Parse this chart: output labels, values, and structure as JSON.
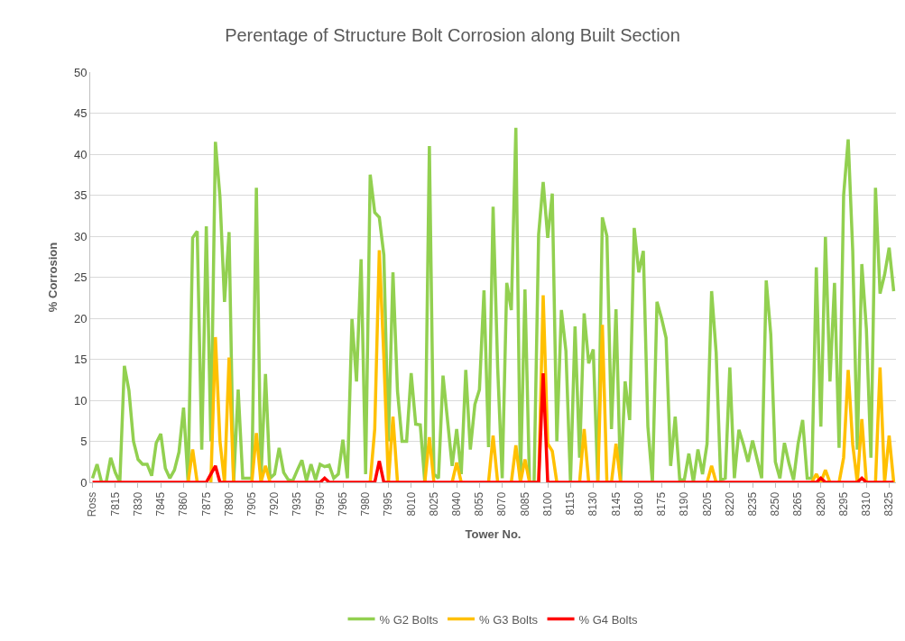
{
  "chart_data": {
    "type": "line",
    "title": "Perentage of Structure Bolt Corrosion along Built Section",
    "xlabel": "Tower No.",
    "ylabel": "% Corrosion",
    "categories": [
      "Ross",
      null,
      null,
      null,
      null,
      "7815",
      null,
      null,
      null,
      null,
      "7830",
      null,
      null,
      null,
      null,
      "7845",
      null,
      null,
      null,
      null,
      "7860",
      null,
      null,
      null,
      null,
      "7875",
      null,
      null,
      null,
      null,
      "7890",
      null,
      null,
      null,
      null,
      "7905",
      null,
      null,
      null,
      null,
      "7920",
      null,
      null,
      null,
      null,
      "7935",
      null,
      null,
      null,
      null,
      "7950",
      null,
      null,
      null,
      null,
      "7965",
      null,
      null,
      null,
      null,
      "7980",
      null,
      null,
      null,
      null,
      "7995",
      null,
      null,
      null,
      null,
      "8010",
      null,
      null,
      null,
      null,
      "8025",
      null,
      null,
      null,
      null,
      "8040",
      null,
      null,
      null,
      null,
      "8055",
      null,
      null,
      null,
      null,
      "8070",
      null,
      null,
      null,
      null,
      "8085",
      null,
      null,
      null,
      null,
      "8100",
      null,
      null,
      null,
      null,
      "8115",
      null,
      null,
      null,
      null,
      "8130",
      null,
      null,
      null,
      null,
      "8145",
      null,
      null,
      null,
      null,
      "8160",
      null,
      null,
      null,
      null,
      "8175",
      null,
      null,
      null,
      null,
      "8190",
      null,
      null,
      null,
      null,
      "8205",
      null,
      null,
      null,
      null,
      "8220",
      null,
      null,
      null,
      null,
      "8235",
      null,
      null,
      null,
      null,
      "8250",
      null,
      null,
      null,
      null,
      "8265",
      null,
      null,
      null,
      null,
      "8280",
      null,
      null,
      null,
      null,
      "8295",
      null,
      null,
      null,
      null,
      "8310",
      null,
      null,
      null,
      null,
      "8325",
      null
    ],
    "series": [
      {
        "name": "% G2 Bolts",
        "color": "#92d050",
        "values": [
          0.5,
          2.2,
          0,
          0,
          3.0,
          1.2,
          0,
          14.2,
          11.2,
          5,
          2.8,
          2.2,
          2.2,
          0.8,
          4.8,
          5.9,
          1.7,
          0.5,
          1.5,
          3.7,
          9.1,
          0,
          29.8,
          30.6,
          4,
          31.2,
          5,
          41.5,
          34.8,
          22,
          30.5,
          0,
          11.3,
          0.5,
          0.5,
          0.5,
          35.9,
          0.5,
          13.2,
          0.5,
          1,
          4.2,
          1.2,
          0.3,
          0.2,
          1.5,
          2.7,
          0.2,
          2.2,
          0.3,
          2.2,
          1.9,
          2.1,
          0.5,
          1.0,
          5.2,
          0.5,
          19.9,
          12.3,
          27.2,
          1,
          37.5,
          32.9,
          32.3,
          27.7,
          5,
          25.6,
          11.1,
          5,
          5,
          13.3,
          7.1,
          7.0,
          0,
          41,
          1,
          0.5,
          13,
          7.5,
          2,
          6.5,
          1,
          13.7,
          4,
          9.5,
          11.3,
          23.4,
          4.3,
          33.6,
          14,
          0.5,
          24.3,
          21,
          43.2,
          0,
          23.5,
          0,
          0,
          30.2,
          36.6,
          29.8,
          35.2,
          5,
          21,
          16,
          0,
          19,
          3,
          20.6,
          14.5,
          16.2,
          0,
          32.3,
          30,
          6.5,
          21.1,
          0,
          12.3,
          7.6,
          31,
          25.6,
          28.2,
          6.8,
          0,
          22,
          20,
          17.6,
          2,
          8,
          0.3,
          0.3,
          3.5,
          0,
          4,
          1,
          4.7,
          23.3,
          15.8,
          0.3,
          0.5,
          14,
          0.5,
          6.4,
          4.6,
          2.5,
          5.1,
          2.8,
          0.5,
          24.6,
          18,
          2.5,
          0.5,
          4.8,
          2.3,
          0.3,
          4.7,
          7.6,
          0.5,
          0.5,
          26.2,
          6.8,
          29.9,
          12.3,
          24.3,
          4.2,
          35,
          41.8,
          28.2,
          4,
          26.6,
          18.7,
          3,
          35.9,
          23,
          25.3,
          28.6,
          23.3
        ]
      },
      {
        "name": "% G3 Bolts",
        "color": "#ffc000",
        "values": [
          null,
          null,
          null,
          null,
          null,
          null,
          null,
          null,
          null,
          null,
          null,
          null,
          null,
          null,
          null,
          null,
          null,
          null,
          null,
          null,
          null,
          0,
          4,
          0,
          null,
          null,
          0,
          17.7,
          5,
          0,
          15.2,
          0,
          null,
          null,
          null,
          0,
          6,
          0,
          2,
          0,
          null,
          null,
          null,
          null,
          null,
          null,
          null,
          null,
          null,
          null,
          null,
          null,
          null,
          null,
          null,
          null,
          null,
          null,
          null,
          null,
          null,
          0,
          6.5,
          28.3,
          15.2,
          0,
          8,
          0,
          null,
          null,
          null,
          null,
          null,
          0,
          5.5,
          0,
          null,
          null,
          null,
          0,
          2.4,
          0,
          null,
          null,
          null,
          null,
          null,
          0,
          5.7,
          0,
          null,
          null,
          0,
          4.5,
          0,
          2.8,
          0,
          null,
          0,
          22.8,
          4.7,
          3.8,
          0,
          null,
          null,
          null,
          null,
          0,
          6.5,
          0,
          null,
          0,
          19.2,
          0,
          0,
          4.7,
          0,
          null,
          null,
          null,
          null,
          null,
          null,
          null,
          null,
          null,
          null,
          null,
          null,
          null,
          null,
          null,
          null,
          null,
          null,
          0,
          2,
          0,
          null,
          null,
          null,
          null,
          null,
          null,
          null,
          null,
          null,
          null,
          null,
          null,
          null,
          null,
          null,
          null,
          null,
          null,
          null,
          null,
          0,
          1,
          0,
          1.5,
          0,
          null,
          0,
          3,
          13.7,
          4.6,
          0,
          7.7,
          0,
          null,
          0,
          14,
          0,
          5.7,
          0
        ]
      },
      {
        "name": "% G4 Bolts",
        "color": "#ff0000",
        "values": [
          0,
          0,
          0,
          0,
          0,
          0,
          0,
          0,
          0,
          0,
          0,
          0,
          0,
          0,
          0,
          0,
          0,
          0,
          0,
          0,
          0,
          0,
          0,
          0,
          0,
          0,
          1,
          2,
          0,
          0,
          0,
          0,
          0,
          0,
          0,
          0,
          0,
          0,
          0,
          0,
          0,
          0,
          0,
          0,
          0,
          0,
          0,
          0,
          0,
          0,
          0,
          0.5,
          0,
          0,
          0,
          0,
          0,
          0,
          0,
          0,
          0,
          0,
          0,
          2.6,
          0,
          0,
          0,
          0,
          0,
          0,
          0,
          0,
          0,
          0,
          0,
          0,
          0,
          0,
          0,
          0,
          0,
          0,
          0,
          0,
          0,
          0,
          0,
          0,
          0,
          0,
          0,
          0,
          0,
          0,
          0,
          0,
          0,
          0,
          0,
          13.3,
          0,
          0,
          0,
          0,
          0,
          0,
          0,
          0,
          0,
          0,
          0,
          0,
          0,
          0,
          0,
          0,
          0,
          0,
          0,
          0,
          0,
          0,
          0,
          0,
          0,
          0,
          0,
          0,
          0,
          0,
          0,
          0,
          0,
          0,
          0,
          0,
          0,
          0,
          0,
          0,
          0,
          0,
          0,
          0,
          0,
          0,
          0,
          0,
          0,
          0,
          0,
          0,
          0,
          0,
          0,
          0,
          0,
          0,
          0,
          0,
          0.5,
          0,
          0,
          0,
          0,
          0,
          0,
          0,
          0,
          0.5,
          0,
          0,
          0,
          0,
          0,
          0,
          0
        ]
      }
    ],
    "ylim": [
      0,
      50
    ],
    "yticks": [
      0,
      5,
      10,
      15,
      20,
      25,
      30,
      35,
      40,
      45,
      50
    ],
    "grid": "y",
    "legend": "bottom",
    "marker": "none",
    "line_style": "solid"
  }
}
